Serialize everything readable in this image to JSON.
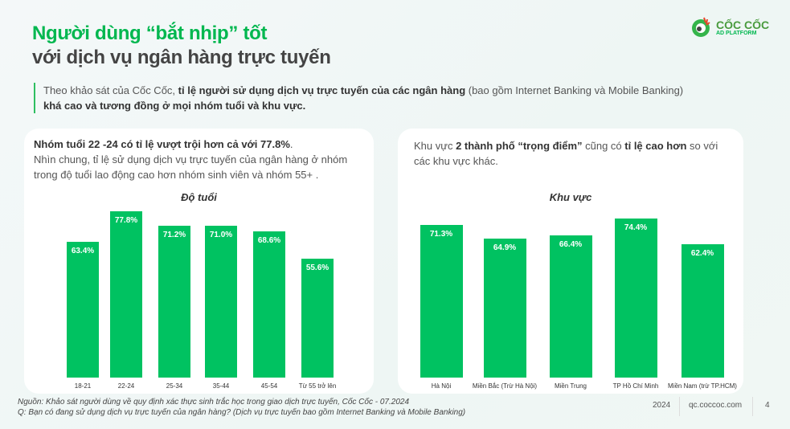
{
  "header": {
    "title_line1": "Người dùng “bắt nhịp” tốt",
    "title_line2": "với dịch vụ ngân hàng trực tuyến",
    "logo_text": "CỐC CỐC",
    "logo_sub": "AD PLATFORM"
  },
  "intro": {
    "p1": "Theo khảo sát của Cốc Cốc, ",
    "b1": "tỉ lệ người sử dụng dịch vụ trực tuyến của các ngân hàng",
    "p2": " (bao gồm Internet Banking và Mobile Banking)",
    "b2": "khá cao và tương đồng ở mọi nhóm tuổi và khu vực."
  },
  "left_card": {
    "bold": "Nhóm tuổi 22 -24 có tỉ lệ vượt trội hơn cả với 77.8%",
    "dot": ".",
    "text": "Nhìn chung, tỉ lệ sử dụng dịch vụ trực tuyến của ngân hàng ở nhóm trong độ tuổi lao động cao hơn nhóm sinh viên và nhóm 55+ ."
  },
  "right_card": {
    "p1": "Khu vực ",
    "b1": "2 thành phố “trọng điểm”",
    "p2": " cũng có ",
    "b2": "tỉ lệ cao hơn",
    "p3": " so với các khu vực khác."
  },
  "chart_data": [
    {
      "type": "bar",
      "title": "Độ tuổi",
      "categories": [
        "18-21",
        "22-24",
        "25-34",
        "35-44",
        "45-54",
        "Từ 55 trở lên"
      ],
      "values": [
        63.4,
        77.8,
        71.2,
        71.0,
        68.6,
        55.6
      ],
      "labels": [
        "63.4%",
        "77.8%",
        "71.2%",
        "71.0%",
        "68.6%",
        "55.6%"
      ],
      "ylim": [
        0,
        100
      ],
      "color": "#00c261"
    },
    {
      "type": "bar",
      "title": "Khu vực",
      "categories": [
        "Hà Nội",
        "Miền Bắc (Trừ Hà Nội)",
        "Miền Trung",
        "TP Hồ Chí Minh",
        "Miền Nam (trừ TP.HCM)"
      ],
      "values": [
        71.3,
        64.9,
        66.4,
        74.4,
        62.4
      ],
      "labels": [
        "71.3%",
        "64.9%",
        "66.4%",
        "74.4%",
        "62.4%"
      ],
      "ylim": [
        0,
        100
      ],
      "color": "#00c261"
    }
  ],
  "footer": {
    "source": "Nguồn: Khảo sát người dùng về quy định xác thực sinh trắc học trong giao dịch trực tuyến, Cốc Cốc - 07.2024",
    "question": "Q: Bạn có đang sử dụng dịch vụ trực tuyến của ngân hàng? (Dịch vụ trực tuyến bao gồm Internet Banking và Mobile Banking)",
    "year": "2024",
    "site": "qc.coccoc.com",
    "page": "4"
  }
}
